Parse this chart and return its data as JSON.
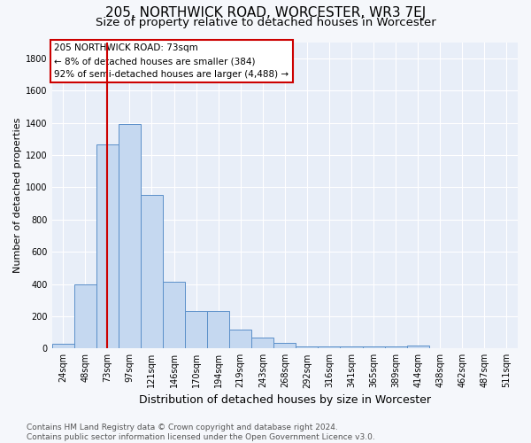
{
  "title1": "205, NORTHWICK ROAD, WORCESTER, WR3 7EJ",
  "title2": "Size of property relative to detached houses in Worcester",
  "xlabel": "Distribution of detached houses by size in Worcester",
  "ylabel": "Number of detached properties",
  "footer1": "Contains HM Land Registry data © Crown copyright and database right 2024.",
  "footer2": "Contains public sector information licensed under the Open Government Licence v3.0.",
  "annotation_line1": "205 NORTHWICK ROAD: 73sqm",
  "annotation_line2": "← 8% of detached houses are smaller (384)",
  "annotation_line3": "92% of semi-detached houses are larger (4,488) →",
  "bar_labels": [
    "24sqm",
    "48sqm",
    "73sqm",
    "97sqm",
    "121sqm",
    "146sqm",
    "170sqm",
    "194sqm",
    "219sqm",
    "243sqm",
    "268sqm",
    "292sqm",
    "316sqm",
    "341sqm",
    "365sqm",
    "389sqm",
    "414sqm",
    "438sqm",
    "462sqm",
    "487sqm",
    "511sqm"
  ],
  "bar_values": [
    30,
    395,
    1265,
    1390,
    950,
    415,
    230,
    230,
    115,
    70,
    37,
    15,
    15,
    15,
    15,
    15,
    20,
    0,
    0,
    0,
    0
  ],
  "bar_color": "#c5d8f0",
  "bar_edge_color": "#5b8fc9",
  "red_line_index": 2,
  "ylim": [
    0,
    1900
  ],
  "yticks": [
    0,
    200,
    400,
    600,
    800,
    1000,
    1200,
    1400,
    1600,
    1800
  ],
  "bg_color": "#e8eef8",
  "grid_color": "#ffffff",
  "fig_bg_color": "#f5f7fb",
  "title1_fontsize": 11,
  "title2_fontsize": 9.5,
  "xlabel_fontsize": 9,
  "ylabel_fontsize": 8,
  "tick_fontsize": 7,
  "footer_fontsize": 6.5,
  "annotation_fontsize": 7.5
}
